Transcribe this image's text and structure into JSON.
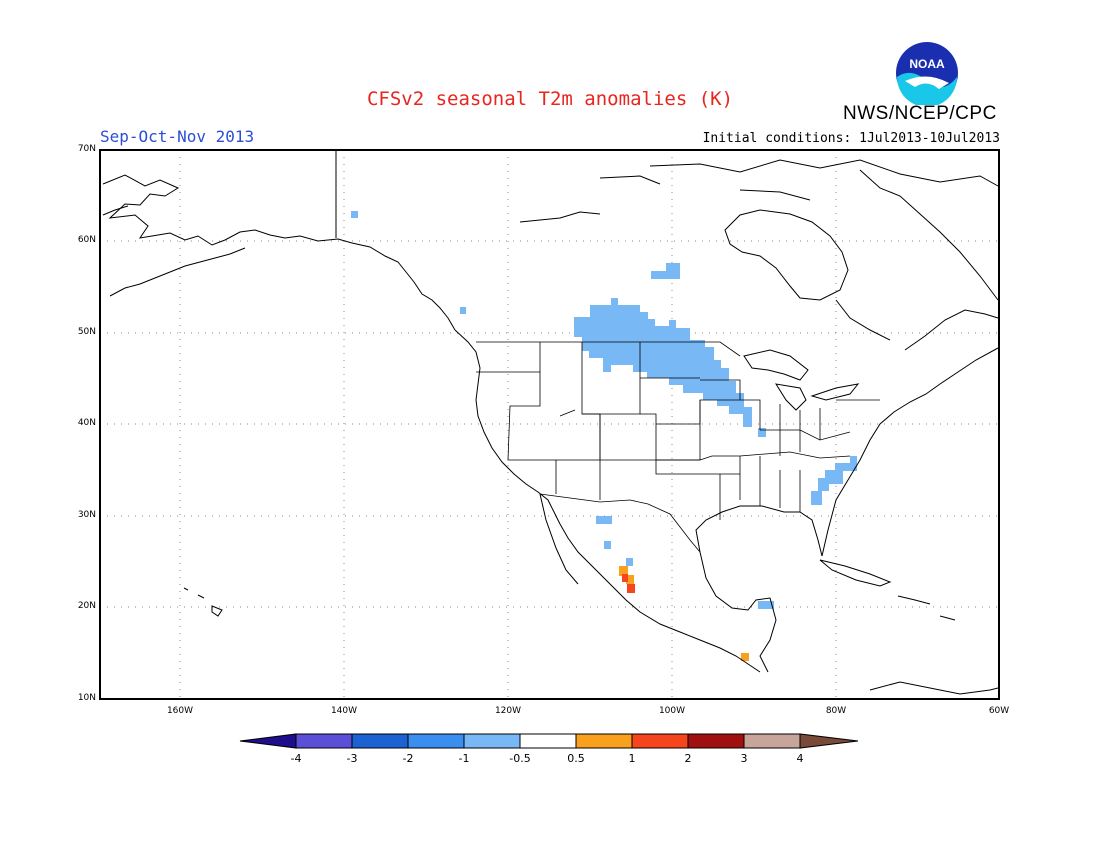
{
  "header": {
    "title": "CFSv2 seasonal T2m anomalies (K)",
    "season": "Sep-Oct-Nov 2013",
    "initial_conditions": "Initial conditions: 1Jul2013-10Jul2013",
    "agency": "NWS/NCEP/CPC",
    "logo_text": "NOAA"
  },
  "axes": {
    "lat_labels": [
      "70N",
      "60N",
      "50N",
      "40N",
      "30N",
      "20N",
      "10N"
    ],
    "lon_labels": [
      "160W",
      "140W",
      "120W",
      "100W",
      "80W",
      "60W"
    ]
  },
  "colorbar": {
    "labels": [
      "-4",
      "-3",
      "-2",
      "-1",
      "-0.5",
      "0.5",
      "1",
      "2",
      "3",
      "4"
    ],
    "colors": {
      "lt_-4": "#1e0e8c",
      "-4_-3": "#5a4fd6",
      "-3_-2": "#1c62d2",
      "-2_-1": "#3a8ef0",
      "-1_-0.5": "#78b8f5",
      "-0.5_0.5": "#ffffff",
      "0.5_1": "#f9a01e",
      "1_2": "#f5451c",
      "2_3": "#a01010",
      "3_4": "#c8a59a",
      "gt_4": "#7a4a38"
    }
  }
}
